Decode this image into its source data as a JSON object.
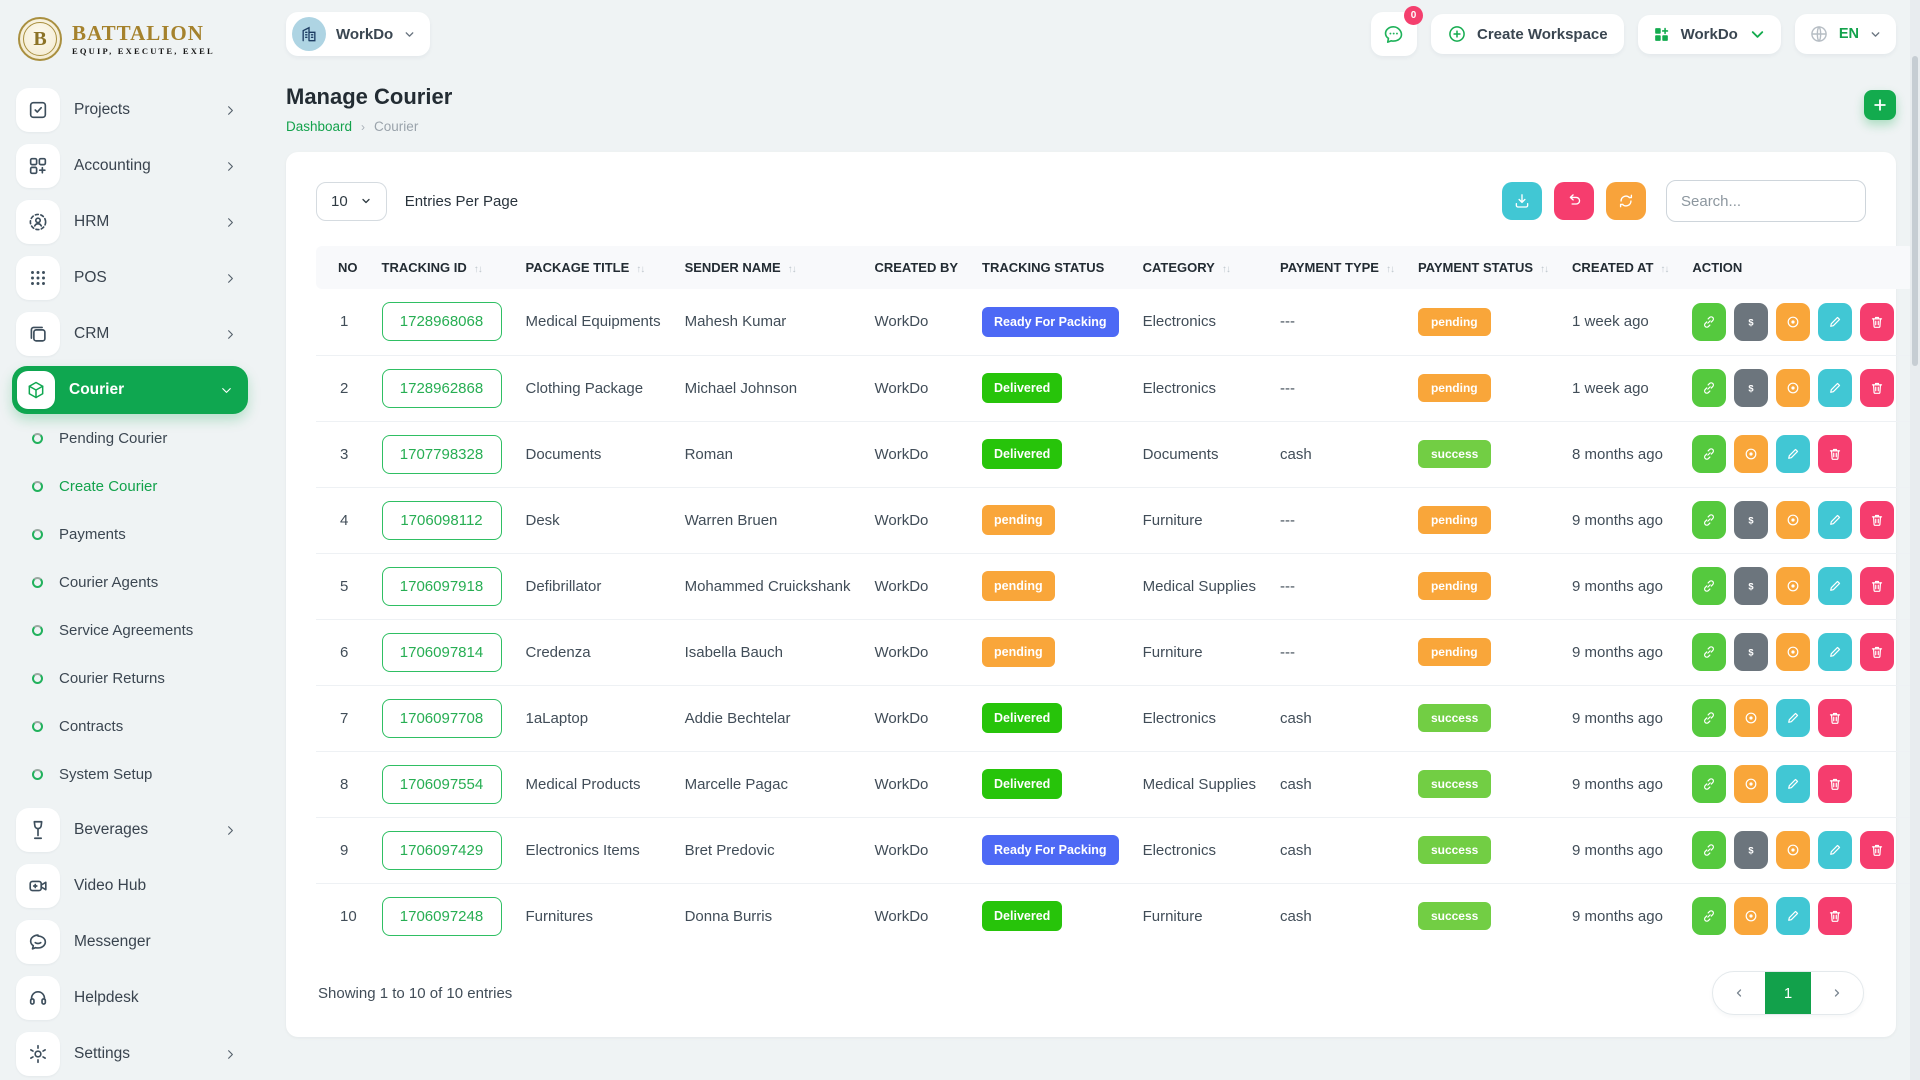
{
  "brand": {
    "name": "BATTALION",
    "tagline": "EQUIP, EXECUTE, EXEL"
  },
  "topbar": {
    "workspace": {
      "label": "WorkDo",
      "avatar_icon": "building-icon"
    },
    "messages": {
      "badge": "0"
    },
    "create_workspace": {
      "label": "Create Workspace"
    },
    "workdo_menu": {
      "label": "WorkDo"
    },
    "language": {
      "label": "EN"
    }
  },
  "sidebar": {
    "items": [
      {
        "kind": "main",
        "icon": "projects",
        "label": "Projects",
        "chevron": "right"
      },
      {
        "kind": "main",
        "icon": "accounting",
        "label": "Accounting",
        "chevron": "right"
      },
      {
        "kind": "main",
        "icon": "hrm",
        "label": "HRM",
        "chevron": "right"
      },
      {
        "kind": "main",
        "icon": "pos",
        "label": "POS",
        "chevron": "right"
      },
      {
        "kind": "main",
        "icon": "crm",
        "label": "CRM",
        "chevron": "right"
      },
      {
        "kind": "main",
        "icon": "courier",
        "label": "Courier",
        "chevron": "down",
        "active": true
      },
      {
        "kind": "sub",
        "label": "Pending Courier"
      },
      {
        "kind": "sub",
        "label": "Create Courier",
        "active": true
      },
      {
        "kind": "sub",
        "label": "Payments"
      },
      {
        "kind": "sub",
        "label": "Courier Agents"
      },
      {
        "kind": "sub",
        "label": "Service Agreements"
      },
      {
        "kind": "sub",
        "label": "Courier Returns"
      },
      {
        "kind": "sub",
        "label": "Contracts"
      },
      {
        "kind": "sub",
        "label": "System Setup"
      },
      {
        "kind": "main",
        "icon": "beverages",
        "label": "Beverages",
        "chevron": "right"
      },
      {
        "kind": "main",
        "icon": "video-hub",
        "label": "Video Hub",
        "chevron": "none"
      },
      {
        "kind": "main",
        "icon": "messenger",
        "label": "Messenger",
        "chevron": "none"
      },
      {
        "kind": "main",
        "icon": "helpdesk",
        "label": "Helpdesk",
        "chevron": "none"
      },
      {
        "kind": "main",
        "icon": "settings",
        "label": "Settings",
        "chevron": "right"
      }
    ]
  },
  "page": {
    "title": "Manage Courier",
    "breadcrumb": {
      "link": "Dashboard",
      "separator": "›",
      "current": "Courier"
    }
  },
  "toolbar": {
    "entries_per_page": "10",
    "entries_label": "Entries Per Page",
    "search_placeholder": "Search...",
    "buttons": [
      {
        "name": "download",
        "color": "#41c7d4"
      },
      {
        "name": "undo",
        "color": "#f63d6e"
      },
      {
        "name": "refresh",
        "color": "#f8a33b"
      }
    ]
  },
  "table": {
    "columns": [
      {
        "label": "NO",
        "sortable": false
      },
      {
        "label": "TRACKING ID",
        "sortable": true
      },
      {
        "label": "PACKAGE TITLE",
        "sortable": true
      },
      {
        "label": "SENDER NAME",
        "sortable": true
      },
      {
        "label": "CREATED BY",
        "sortable": false
      },
      {
        "label": "TRACKING STATUS",
        "sortable": false
      },
      {
        "label": "CATEGORY",
        "sortable": true
      },
      {
        "label": "PAYMENT TYPE",
        "sortable": true
      },
      {
        "label": "PAYMENT STATUS",
        "sortable": true
      },
      {
        "label": "CREATED AT",
        "sortable": true
      },
      {
        "label": "ACTION",
        "sortable": false
      }
    ],
    "rows": [
      {
        "no": "1",
        "tracking_id": "1728968068",
        "package_title": "Medical Equipments",
        "sender_name": "Mahesh Kumar",
        "created_by": "WorkDo",
        "tracking_status": "Ready For Packing",
        "category": "Electronics",
        "payment_type": "---",
        "payment_status": "pending",
        "created_at": "1 week ago",
        "actions": [
          "link",
          "payment",
          "view",
          "edit",
          "delete"
        ]
      },
      {
        "no": "2",
        "tracking_id": "1728962868",
        "package_title": "Clothing Package",
        "sender_name": "Michael Johnson",
        "created_by": "WorkDo",
        "tracking_status": "Delivered",
        "category": "Electronics",
        "payment_type": "---",
        "payment_status": "pending",
        "created_at": "1 week ago",
        "actions": [
          "link",
          "payment",
          "view",
          "edit",
          "delete"
        ]
      },
      {
        "no": "3",
        "tracking_id": "1707798328",
        "package_title": "Documents",
        "sender_name": "Roman",
        "created_by": "WorkDo",
        "tracking_status": "Delivered",
        "category": "Documents",
        "payment_type": "cash",
        "payment_status": "success",
        "created_at": "8 months ago",
        "actions": [
          "link",
          "view",
          "edit",
          "delete"
        ]
      },
      {
        "no": "4",
        "tracking_id": "1706098112",
        "package_title": "Desk",
        "sender_name": "Warren Bruen",
        "created_by": "WorkDo",
        "tracking_status": "pending",
        "category": "Furniture",
        "payment_type": "---",
        "payment_status": "pending",
        "created_at": "9 months ago",
        "actions": [
          "link",
          "payment",
          "view",
          "edit",
          "delete"
        ]
      },
      {
        "no": "5",
        "tracking_id": "1706097918",
        "package_title": "Defibrillator",
        "sender_name": "Mohammed Cruickshank",
        "created_by": "WorkDo",
        "tracking_status": "pending",
        "category": "Medical Supplies",
        "payment_type": "---",
        "payment_status": "pending",
        "created_at": "9 months ago",
        "actions": [
          "link",
          "payment",
          "view",
          "edit",
          "delete"
        ]
      },
      {
        "no": "6",
        "tracking_id": "1706097814",
        "package_title": "Credenza",
        "sender_name": "Isabella Bauch",
        "created_by": "WorkDo",
        "tracking_status": "pending",
        "category": "Furniture",
        "payment_type": "---",
        "payment_status": "pending",
        "created_at": "9 months ago",
        "actions": [
          "link",
          "payment",
          "view",
          "edit",
          "delete"
        ]
      },
      {
        "no": "7",
        "tracking_id": "1706097708",
        "package_title": "1aLaptop",
        "sender_name": "Addie Bechtelar",
        "created_by": "WorkDo",
        "tracking_status": "Delivered",
        "category": "Electronics",
        "payment_type": "cash",
        "payment_status": "success",
        "created_at": "9 months ago",
        "actions": [
          "link",
          "view",
          "edit",
          "delete"
        ]
      },
      {
        "no": "8",
        "tracking_id": "1706097554",
        "package_title": "Medical Products",
        "sender_name": "Marcelle Pagac",
        "created_by": "WorkDo",
        "tracking_status": "Delivered",
        "category": "Medical Supplies",
        "payment_type": "cash",
        "payment_status": "success",
        "created_at": "9 months ago",
        "actions": [
          "link",
          "view",
          "edit",
          "delete"
        ]
      },
      {
        "no": "9",
        "tracking_id": "1706097429",
        "package_title": "Electronics Items",
        "sender_name": "Bret Predovic",
        "created_by": "WorkDo",
        "tracking_status": "Ready For Packing",
        "category": "Electronics",
        "payment_type": "cash",
        "payment_status": "success",
        "created_at": "9 months ago",
        "actions": [
          "link",
          "payment",
          "view",
          "edit",
          "delete"
        ]
      },
      {
        "no": "10",
        "tracking_id": "1706097248",
        "package_title": "Furnitures",
        "sender_name": "Donna Burris",
        "created_by": "WorkDo",
        "tracking_status": "Delivered",
        "category": "Furniture",
        "payment_type": "cash",
        "payment_status": "success",
        "created_at": "9 months ago",
        "actions": [
          "link",
          "view",
          "edit",
          "delete"
        ]
      }
    ]
  },
  "footer": {
    "showing_text": "Showing 1 to 10 of 10 entries",
    "page": "1"
  },
  "colors": {
    "primary_green": "#12a14b",
    "active_menu_green": "#0fa750",
    "status_badges": {
      "Ready For Packing": "#4d69f5",
      "Delivered": "#27c40a",
      "pending": "#f9a63a"
    },
    "payment_badges": {
      "pending": "#f9a63a",
      "success": "#72ce44"
    },
    "action_buttons": {
      "link": "#55c93e",
      "payment": "#6c757d",
      "view": "#f9a63a",
      "edit": "#41c7d4",
      "delete": "#f53d6e"
    }
  }
}
